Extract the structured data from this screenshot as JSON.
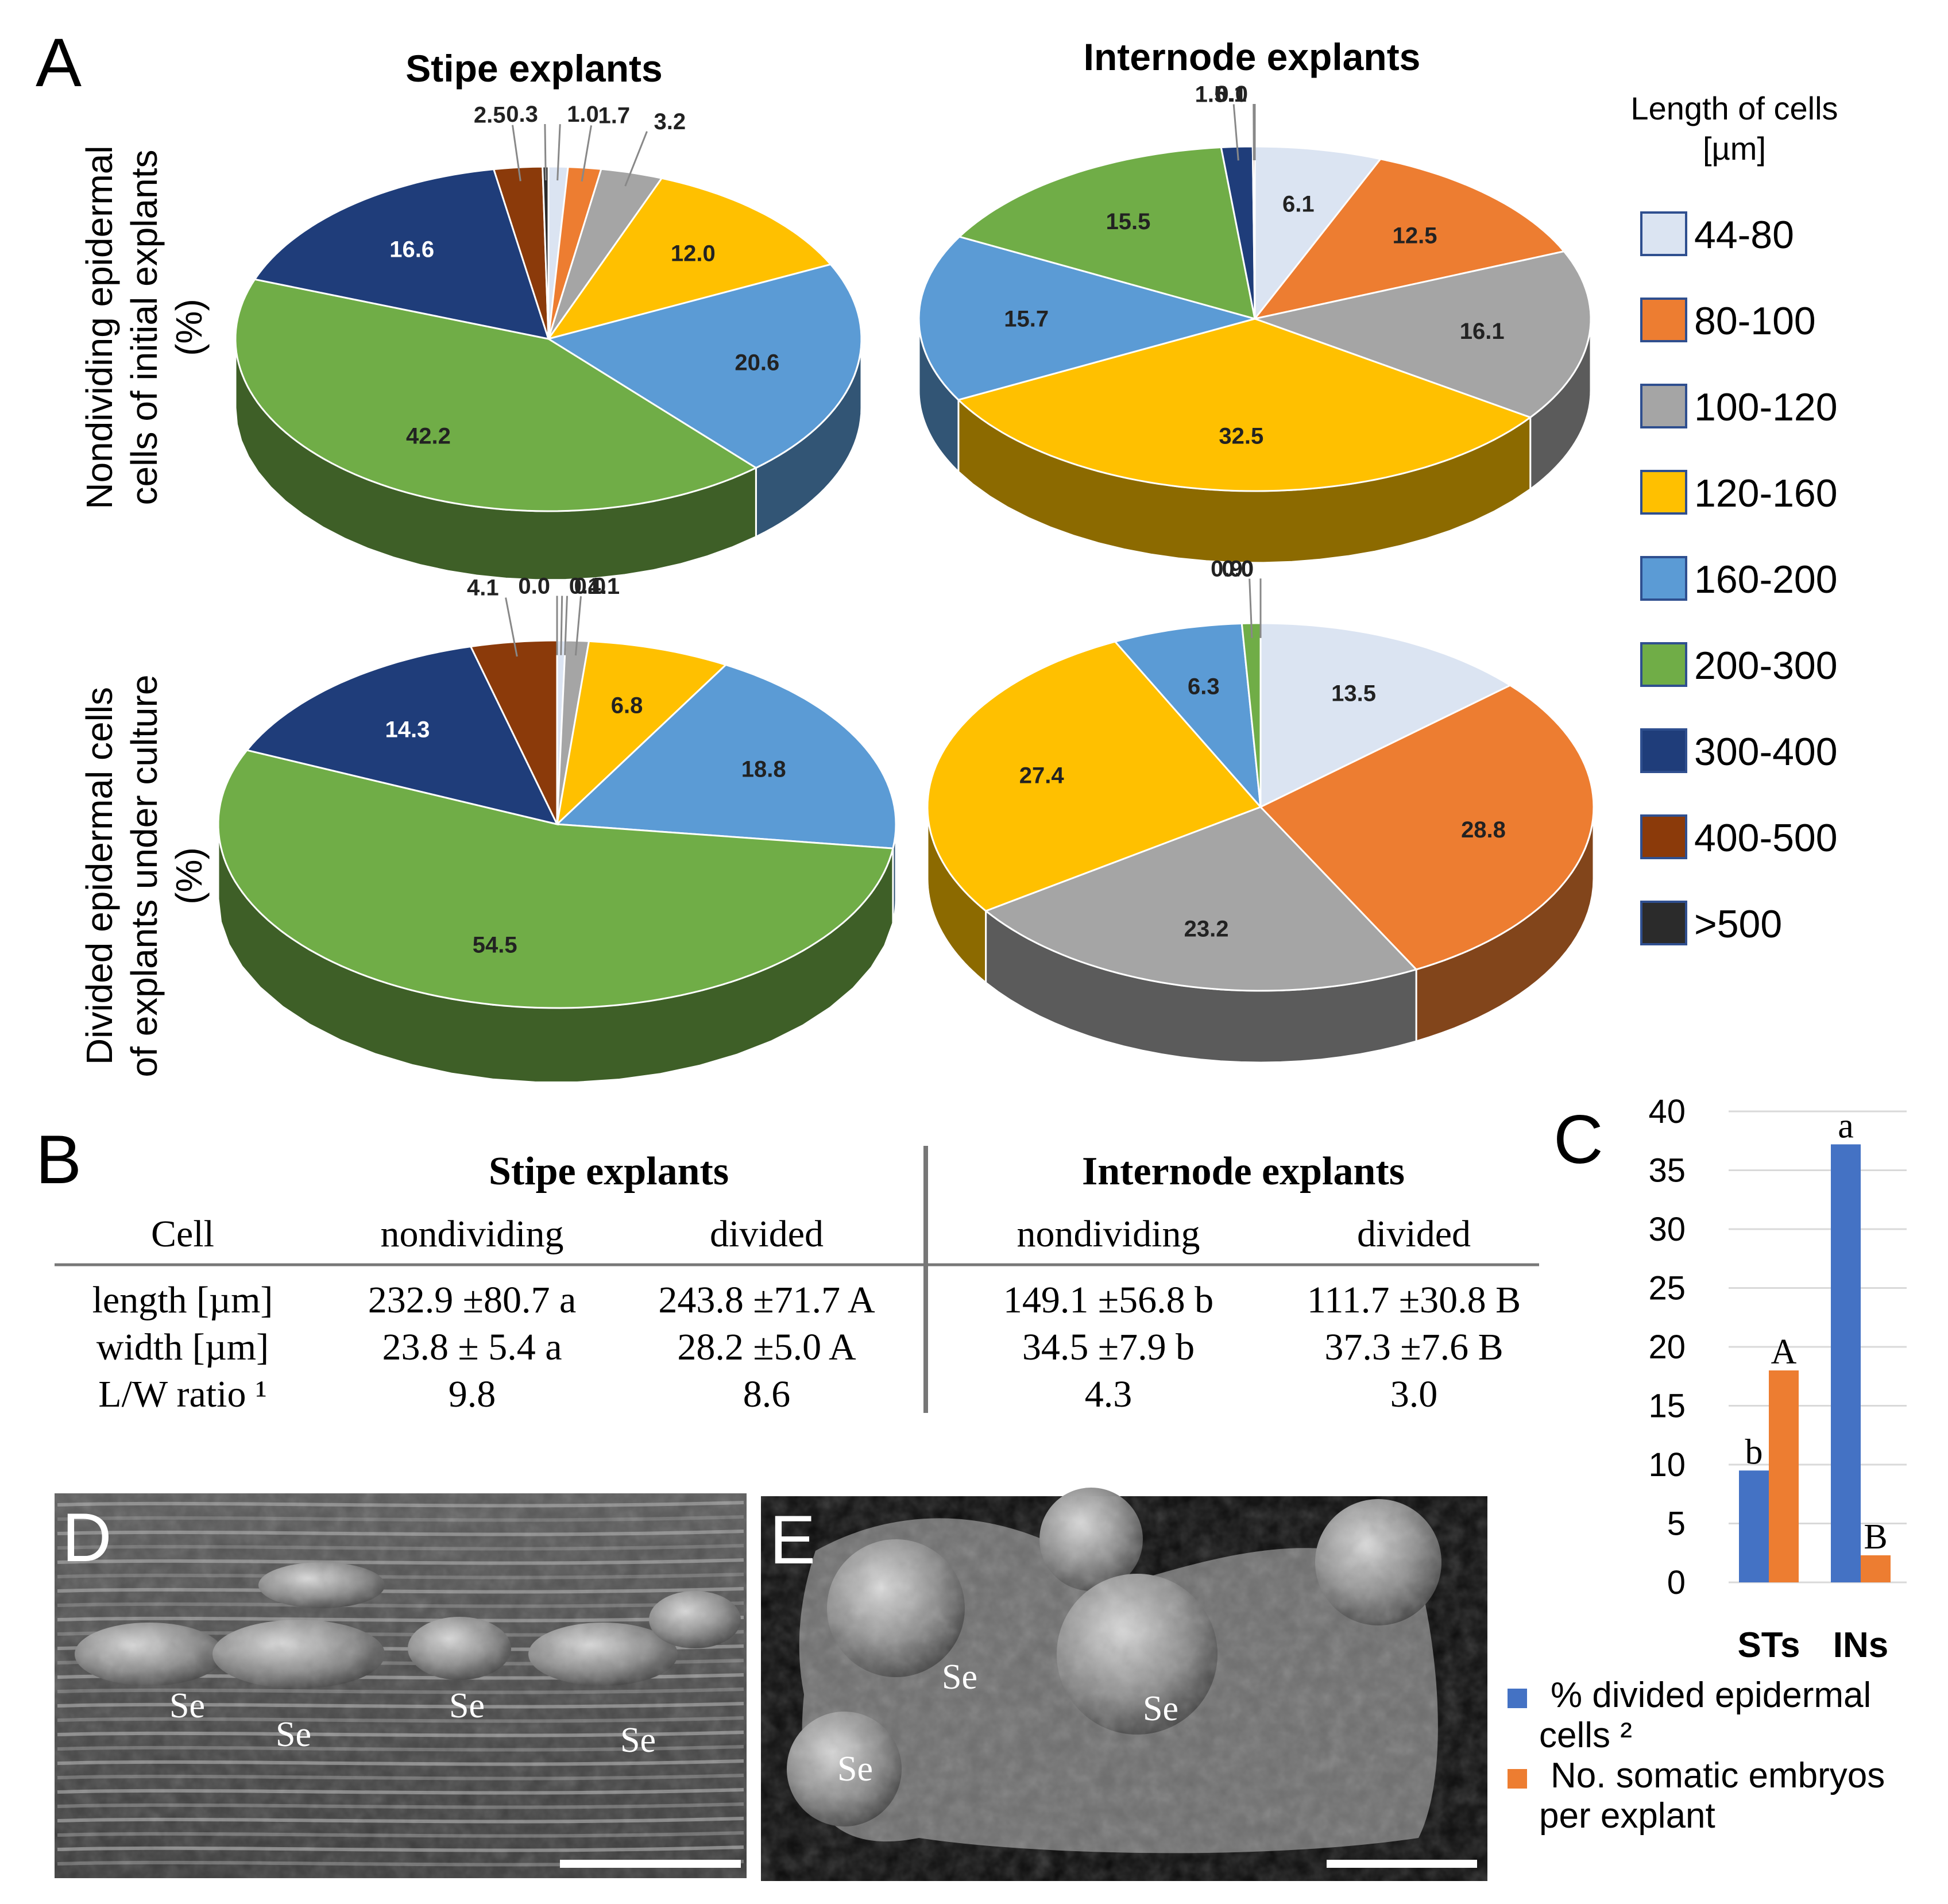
{
  "panel_letters": {
    "a": "A",
    "b": "B",
    "c": "C",
    "d": "D",
    "e": "E"
  },
  "panel_a": {
    "col_titles": [
      "Stipe explants",
      "Internode explants"
    ],
    "row_titles": [
      [
        "Nondividing epidermal",
        "cells of initial explants",
        "(%)"
      ],
      [
        "Divided epidermal cells",
        "of explants under culture",
        "(%)"
      ]
    ],
    "legend_title": [
      "Length of cells",
      "[µm]"
    ],
    "legend": [
      {
        "label": "44-80",
        "color": "#dbe4f2"
      },
      {
        "label": "80-100",
        "color": "#ed7d31"
      },
      {
        "label": "100-120",
        "color": "#a5a5a5"
      },
      {
        "label": "120-160",
        "color": "#ffc000"
      },
      {
        "label": "160-200",
        "color": "#5b9bd5"
      },
      {
        "label": "200-300",
        "color": "#70ad47"
      },
      {
        "label": "300-400",
        "color": "#1f3d7a"
      },
      {
        "label": "400-500",
        "color": "#8b3a0a"
      },
      {
        "label": ">500",
        "color": "#2b2b2b"
      }
    ]
  },
  "chart_data": [
    {
      "type": "pie",
      "title": "Stipe explants",
      "subtitle": "Nondividing epidermal cells of initial explants (%)",
      "categories": [
        "44-80",
        "80-100",
        "100-120",
        "120-160",
        "160-200",
        "200-300",
        "300-400",
        "400-500",
        ">500"
      ],
      "values": [
        1.0,
        1.7,
        3.2,
        12.0,
        20.6,
        42.2,
        16.6,
        2.5,
        0.3
      ],
      "labels": [
        "1.0",
        "1.7",
        "3.2",
        "12.0",
        "20.6",
        "42.2",
        "16.6",
        "2.5",
        "0.3"
      ]
    },
    {
      "type": "pie",
      "title": "Internode explants",
      "subtitle": "Nondividing epidermal cells of initial explants (%)",
      "categories": [
        "44-80",
        "80-100",
        "100-120",
        "120-160",
        "160-200",
        "200-300",
        "300-400",
        "400-500",
        ">500"
      ],
      "values": [
        6.1,
        12.5,
        16.1,
        32.5,
        15.7,
        15.5,
        1.5,
        0.1,
        0.0
      ],
      "labels": [
        "6.1",
        "12.5",
        "16.1",
        "32.5",
        "15.7",
        "15.5",
        "1.5",
        "0.1",
        "0.0"
      ]
    },
    {
      "type": "pie",
      "title": "Stipe explants",
      "subtitle": "Divided epidermal cells of explants under culture (%)",
      "categories": [
        "44-80",
        "80-100",
        "100-120",
        "120-160",
        "160-200",
        "200-300",
        "300-400",
        "400-500",
        ">500"
      ],
      "values": [
        0.4,
        0.0,
        1.1,
        6.8,
        18.8,
        54.5,
        14.3,
        4.1,
        0.0
      ],
      "labels": [
        "0.4",
        "0.0",
        "1.1",
        "6.8",
        "18.8",
        "54.5",
        "14.3",
        "4.1",
        "0.0"
      ]
    },
    {
      "type": "pie",
      "title": "Internode explants",
      "subtitle": "Divided epidermal cells of explants under culture (%)",
      "categories": [
        "44-80",
        "80-100",
        "100-120",
        "120-160",
        "160-200",
        "200-300",
        "300-400",
        "400-500",
        ">500"
      ],
      "values": [
        13.5,
        28.8,
        23.2,
        27.4,
        6.3,
        0.9,
        0.0,
        0.0,
        0.0
      ],
      "labels": [
        "13.5",
        "28.8",
        "23.2",
        "27.4",
        "6.3",
        "0.9",
        "0.0",
        "0.0",
        "0.0"
      ]
    },
    {
      "type": "table",
      "title": "B",
      "group_headers": [
        "Stipe explants",
        "Internode explants"
      ],
      "columns": [
        "Cell",
        "nondividing",
        "divided",
        "nondividing",
        "divided"
      ],
      "rows": [
        [
          "length [µm]",
          "232.9 ±80.7 a",
          "243.8 ±71.7 A",
          "149.1 ±56.8 b",
          "111.7 ±30.8 B"
        ],
        [
          "width [µm]",
          "23.8 ± 5.4 a",
          "28.2 ±5.0 A",
          "34.5 ±7.9 b",
          "37.3 ±7.6 B"
        ],
        [
          "L/W ratio ¹",
          "9.8",
          "8.6",
          "4.3",
          "3.0"
        ]
      ]
    },
    {
      "type": "bar",
      "title": "C",
      "categories": [
        "STs",
        "INs"
      ],
      "series": [
        {
          "name": "% divided epidermal cells ²",
          "values": [
            9.5,
            37.2
          ],
          "color": "#4472c4",
          "letters": [
            "b",
            "a"
          ]
        },
        {
          "name": "No. somatic embryos per explant",
          "values": [
            18.0,
            2.3
          ],
          "color": "#ed7d31",
          "letters": [
            "A",
            "B"
          ]
        }
      ],
      "yticks": [
        "0",
        "5",
        "10",
        "15",
        "20",
        "25",
        "30",
        "35",
        "40"
      ],
      "ylim": [
        0,
        40
      ],
      "grid": true,
      "legend_lines": [
        [
          "% divided epidermal",
          "cells ²"
        ],
        [
          "No. somatic embryos",
          "per explant"
        ]
      ]
    }
  ],
  "panel_d": {
    "labels": [
      "Se",
      "Se",
      "Se",
      "Se"
    ]
  },
  "panel_e": {
    "labels": [
      "Se",
      "Se",
      "Se"
    ]
  }
}
